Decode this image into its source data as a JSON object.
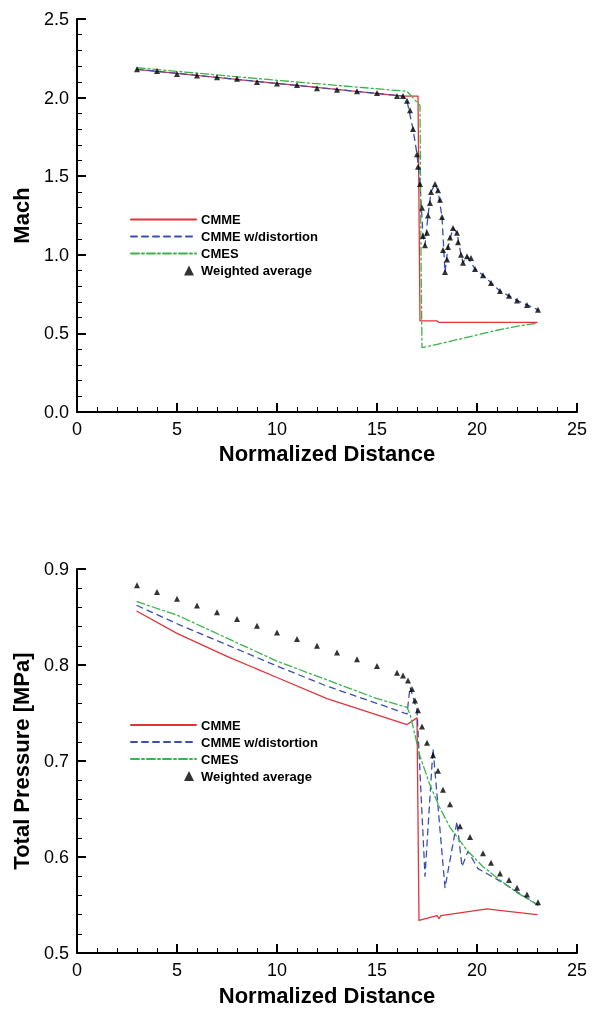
{
  "chart_data": [
    {
      "type": "line",
      "xlabel": "Normalized Distance",
      "ylabel": "Mach",
      "xlim": [
        0,
        25
      ],
      "xticks": [
        0,
        5,
        10,
        15,
        20,
        25
      ],
      "ylim": [
        0,
        2.5
      ],
      "yticks": [
        {
          "value": 0,
          "label": "0.0"
        },
        0.5,
        {
          "value": 1,
          "label": "1.0"
        },
        1.5,
        {
          "value": 2,
          "label": "2.0"
        },
        2.5
      ],
      "grid": false,
      "legend": "left",
      "series": [
        {
          "name": "CMME",
          "line_style": "solid",
          "color": "#e0343a",
          "x": [
            3,
            10,
            16.3,
            17.05,
            17.1,
            17.15,
            18,
            18.1,
            20,
            23
          ],
          "values": [
            2.18,
            2.09,
            2.01,
            2.01,
            1.3,
            0.58,
            0.58,
            0.57,
            0.57,
            0.57
          ]
        },
        {
          "name": "CMME w/distortion",
          "line_style": "dashed",
          "color": "#3a4fb0",
          "x": [
            3,
            10,
            16.3,
            16.5,
            16.8,
            17.0,
            17.15,
            17.3,
            17.4,
            17.55,
            17.7,
            17.9,
            18.05,
            18.25,
            18.4,
            18.55,
            18.8,
            19.0,
            19.2,
            19.3,
            19.5,
            19.9,
            20.3,
            21.15,
            22.0,
            23.05
          ],
          "values": [
            2.18,
            2.09,
            2.01,
            1.98,
            1.8,
            1.64,
            1.45,
            1.12,
            1.06,
            1.25,
            1.4,
            1.45,
            1.41,
            1.24,
            0.89,
            1.05,
            1.17,
            1.14,
            1.0,
            0.95,
            0.99,
            0.91,
            0.87,
            0.77,
            0.71,
            0.65
          ]
        },
        {
          "name": "CMES",
          "line_style": "dashdot",
          "color": "#3cb34a",
          "x": [
            3,
            10,
            16.5,
            17.15,
            17.2,
            17.25,
            18,
            19,
            20,
            21,
            22,
            23
          ],
          "values": [
            2.19,
            2.11,
            2.04,
            1.95,
            1.0,
            0.41,
            0.43,
            0.46,
            0.49,
            0.52,
            0.545,
            0.565
          ]
        },
        {
          "name": "Weighted average",
          "type": "scatter",
          "marker": "triangle",
          "color": "#000000",
          "x": [
            3,
            4,
            5,
            6,
            7,
            8,
            9,
            10,
            11,
            12,
            13,
            14,
            15,
            16,
            16.3,
            16.5,
            16.65,
            16.8,
            17.0,
            17.05,
            17.15,
            17.25,
            17.3,
            17.4,
            17.5,
            17.55,
            17.65,
            17.7,
            17.9,
            18.05,
            18.15,
            18.25,
            18.3,
            18.4,
            18.5,
            18.55,
            18.65,
            18.8,
            19.0,
            19.05,
            19.2,
            19.3,
            19.5,
            19.7,
            19.9,
            20.3,
            20.7,
            21.15,
            21.6,
            22.0,
            22.5,
            23.05
          ],
          "values": [
            2.18,
            2.17,
            2.15,
            2.14,
            2.13,
            2.12,
            2.1,
            2.09,
            2.08,
            2.06,
            2.05,
            2.04,
            2.03,
            2.01,
            2.01,
            1.98,
            1.92,
            1.8,
            1.64,
            1.56,
            1.45,
            1.3,
            1.12,
            1.06,
            1.14,
            1.25,
            1.33,
            1.4,
            1.45,
            1.41,
            1.35,
            1.24,
            1.03,
            0.89,
            0.97,
            1.05,
            1.11,
            1.17,
            1.14,
            1.08,
            1.0,
            0.95,
            0.99,
            0.98,
            0.91,
            0.87,
            0.82,
            0.77,
            0.74,
            0.71,
            0.68,
            0.65
          ]
        }
      ]
    },
    {
      "type": "line",
      "xlabel": "Normalized Distance",
      "ylabel": "Total Pressure [MPa]",
      "xlim": [
        0,
        25
      ],
      "xticks": [
        0,
        5,
        10,
        15,
        20,
        25
      ],
      "ylim": [
        0.5,
        0.9
      ],
      "yticks": [
        0.5,
        0.6,
        0.7,
        0.8,
        0.9
      ],
      "grid": false,
      "legend": "left",
      "series": [
        {
          "name": "CMME",
          "line_style": "solid",
          "color": "#e0343a",
          "x": [
            3,
            5,
            7.5,
            10,
            12.5,
            15,
            16.5,
            17.0,
            17.05,
            17.1,
            18,
            18.1,
            18.2,
            20.5,
            23
          ],
          "values": [
            0.856,
            0.833,
            0.809,
            0.787,
            0.765,
            0.748,
            0.738,
            0.745,
            0.64,
            0.534,
            0.539,
            0.536,
            0.539,
            0.546,
            0.54
          ]
        },
        {
          "name": "CMME w/distortion",
          "line_style": "dashed",
          "color": "#3a4fb0",
          "x": [
            3,
            5,
            7.5,
            10,
            12.5,
            15,
            16.5,
            16.65,
            17.0,
            17.4,
            17.8,
            18.4,
            19.0,
            19.25,
            19.55,
            20.05,
            21.15,
            22.3,
            23.05
          ],
          "values": [
            0.862,
            0.843,
            0.821,
            0.799,
            0.778,
            0.76,
            0.749,
            0.777,
            0.753,
            0.58,
            0.713,
            0.568,
            0.637,
            0.59,
            0.606,
            0.588,
            0.575,
            0.56,
            0.55
          ]
        },
        {
          "name": "CMES",
          "line_style": "dashdot",
          "color": "#3cb34a",
          "x": [
            3,
            5,
            10,
            15,
            16.5,
            16.65,
            17.15,
            17.65,
            18.15,
            18.65,
            19.5,
            20.3,
            21.15,
            22.0,
            23.05
          ],
          "values": [
            0.866,
            0.852,
            0.804,
            0.765,
            0.756,
            0.749,
            0.705,
            0.675,
            0.651,
            0.631,
            0.607,
            0.59,
            0.576,
            0.563,
            0.55
          ]
        },
        {
          "name": "Weighted average",
          "type": "scatter",
          "marker": "triangle",
          "color": "#000000",
          "x": [
            3,
            4,
            5,
            6,
            7,
            8,
            9,
            10,
            11,
            12,
            13,
            14,
            15,
            16,
            16.3,
            16.55,
            16.75,
            16.9,
            17.05,
            17.25,
            17.5,
            17.8,
            18.05,
            18.3,
            18.65,
            19.15,
            19.65,
            20.3,
            20.7,
            21.15,
            21.6,
            22.0,
            22.5,
            23.05
          ],
          "values": [
            0.883,
            0.876,
            0.869,
            0.862,
            0.855,
            0.848,
            0.841,
            0.834,
            0.827,
            0.82,
            0.813,
            0.806,
            0.799,
            0.792,
            0.789,
            0.784,
            0.775,
            0.763,
            0.753,
            0.736,
            0.719,
            0.706,
            0.69,
            0.67,
            0.655,
            0.632,
            0.621,
            0.604,
            0.594,
            0.583,
            0.576,
            0.568,
            0.561,
            0.553
          ]
        }
      ]
    }
  ]
}
